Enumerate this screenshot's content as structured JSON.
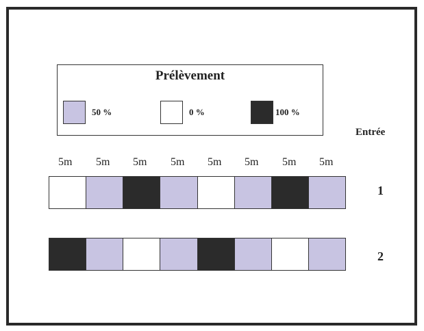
{
  "legend": {
    "title": "Prélèvement",
    "items": [
      {
        "label": "50 %",
        "color": "#c8c4e2"
      },
      {
        "label": "0 %",
        "color": "#ffffff"
      },
      {
        "label": "100 %",
        "color": "#2b2b2b"
      }
    ]
  },
  "column_header": "Entrée",
  "segment_lengths": [
    "5m",
    "5m",
    "5m",
    "5m",
    "5m",
    "5m",
    "5m",
    "5m"
  ],
  "strips": [
    {
      "label": "1",
      "segments": [
        "0 %",
        "50 %",
        "100 %",
        "50 %",
        "0 %",
        "50 %",
        "100 %",
        "50 %"
      ]
    },
    {
      "label": "2",
      "segments": [
        "100 %",
        "50 %",
        "0 %",
        "50 %",
        "100 %",
        "50 %",
        "0 %",
        "50 %"
      ]
    }
  ]
}
